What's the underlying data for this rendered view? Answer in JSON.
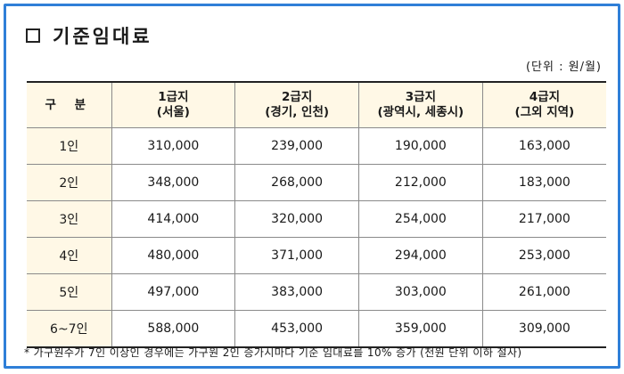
{
  "title": "기준임대료",
  "unit": "(단위 : 원/월)",
  "table": {
    "corner": "구 분",
    "columns": [
      {
        "line1": "1급지",
        "line2": "(서울)"
      },
      {
        "line1": "2급지",
        "line2": "(경기, 인천)"
      },
      {
        "line1": "3급지",
        "line2": "(광역시, 세종시)"
      },
      {
        "line1": "4급지",
        "line2": "(그외 지역)"
      }
    ],
    "rows": [
      {
        "label": "1인",
        "values": [
          "310,000",
          "239,000",
          "190,000",
          "163,000"
        ]
      },
      {
        "label": "2인",
        "values": [
          "348,000",
          "268,000",
          "212,000",
          "183,000"
        ]
      },
      {
        "label": "3인",
        "values": [
          "414,000",
          "320,000",
          "254,000",
          "217,000"
        ]
      },
      {
        "label": "4인",
        "values": [
          "480,000",
          "371,000",
          "294,000",
          "253,000"
        ]
      },
      {
        "label": "5인",
        "values": [
          "497,000",
          "383,000",
          "303,000",
          "261,000"
        ]
      },
      {
        "label": "6~7인",
        "values": [
          "588,000",
          "453,000",
          "359,000",
          "309,000"
        ]
      }
    ]
  },
  "footnote": "* 가구원수가 7인 이상인 경우에는 가구원 2인 증가시마다 기준 임대료를 10% 증가 (천원 단위 이하 절사)"
}
